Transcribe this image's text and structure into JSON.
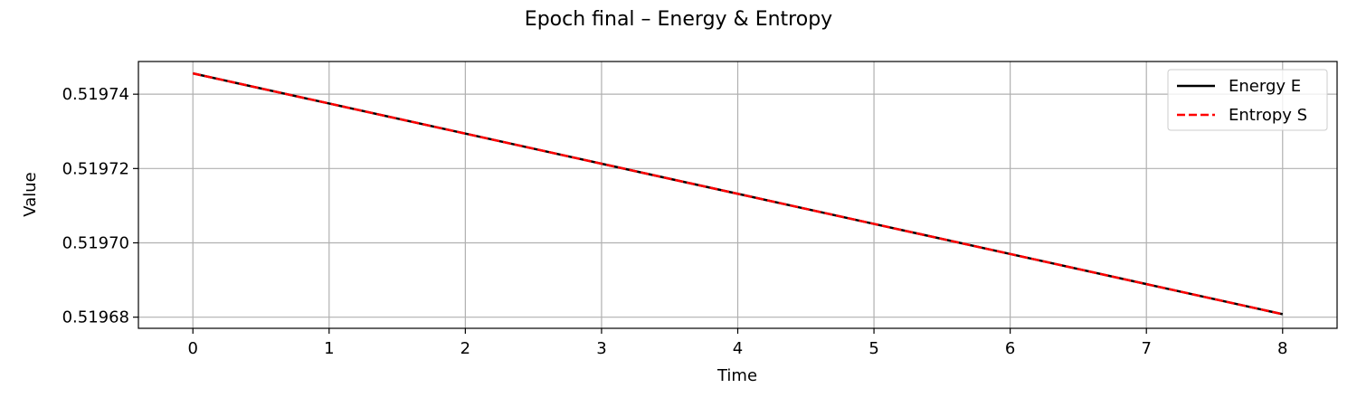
{
  "chart_data": {
    "type": "line",
    "title": "Epoch final – Energy & Entropy",
    "xlabel": "Time",
    "ylabel": "Value",
    "x": [
      0,
      1,
      2,
      3,
      4,
      5,
      6,
      7,
      8
    ],
    "xticks": [
      "0",
      "1",
      "2",
      "3",
      "4",
      "5",
      "6",
      "7",
      "8"
    ],
    "yticks": [
      "0.51968",
      "0.51970",
      "0.51972",
      "0.51974"
    ],
    "ytick_values": [
      0.51968,
      0.5197,
      0.51972,
      0.51974
    ],
    "xlim": [
      -0.4,
      8.4
    ],
    "ylim": [
      0.519677,
      0.5197488
    ],
    "grid": true,
    "legend_position": "top-right",
    "series": [
      {
        "name": "Energy E",
        "color": "#000000",
        "style": "solid",
        "values": [
          0.5197456,
          0.5197375,
          0.5197294,
          0.5197213,
          0.5197132,
          0.5197051,
          0.519697,
          0.5196889,
          0.5196808
        ]
      },
      {
        "name": "Entropy S",
        "color": "#ff0000",
        "style": "dashed",
        "values": [
          0.5197456,
          0.5197375,
          0.5197294,
          0.5197213,
          0.5197132,
          0.5197051,
          0.519697,
          0.5196889,
          0.5196808
        ]
      }
    ]
  }
}
